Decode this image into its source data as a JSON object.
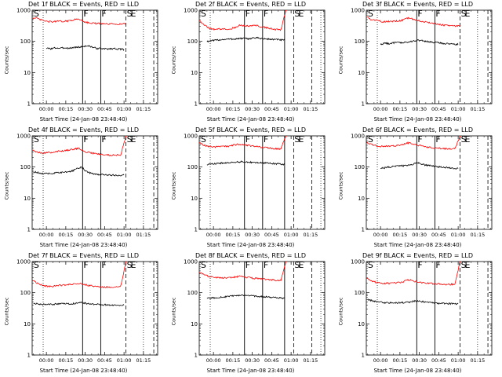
{
  "panel_title_template": "Det {det} BLACK = Events, RED = LLD",
  "x_axis_title": "Start Time (24-Jan-08 23:48:40)",
  "y_axis_title": "Counts/sec",
  "colors": {
    "events": "#000000",
    "lld": "#ff0000",
    "axes": "#000000"
  },
  "chart_data": [
    {
      "type": "line",
      "title": "Det 1f BLACK = Events, RED = LLD",
      "xlabel": "Start Time (24-Jan-08 23:48:40)",
      "ylabel": "Counts/sec",
      "y_scale": "log",
      "ylim": [
        1,
        1000
      ],
      "y_ticks": [
        "1",
        "10",
        "100",
        "1000"
      ],
      "x_tick_labels": [
        "00:00",
        "00:15",
        "00:30",
        "00:45",
        "01:00",
        "01:15"
      ],
      "x_minutes_start": -11,
      "x_minutes_end": 86,
      "markers": [
        {
          "label": "S",
          "t": -10.5
        },
        {
          "label": "F",
          "t": 28
        },
        {
          "label": "F",
          "t": 42
        },
        {
          "label": "S",
          "t": 61.5
        },
        {
          "label": "E",
          "t": 64.5
        }
      ],
      "solid_lines": [
        28,
        42
      ],
      "dashed_lines": [
        61.5,
        83
      ],
      "dotted_lines": [
        -2.5,
        75
      ],
      "series": [
        {
          "name": "Events",
          "color": "#000000",
          "t_start": 0,
          "t_end": 60,
          "values": [
            60,
            58,
            62,
            60,
            63,
            60,
            64,
            65,
            68,
            72,
            66,
            60,
            58,
            57,
            58,
            59,
            56,
            55
          ]
        },
        {
          "name": "LLD",
          "color": "#ff0000",
          "t_start": -11,
          "t_end": 61.5,
          "values": [
            560,
            540,
            470,
            430,
            430,
            440,
            440,
            450,
            500,
            520,
            430,
            390,
            380,
            370,
            360,
            360,
            360,
            360,
            370
          ]
        }
      ]
    },
    {
      "type": "line",
      "title": "Det 2f BLACK = Events, RED = LLD",
      "xlabel": "Start Time (24-Jan-08 23:48:40)",
      "ylabel": "Counts/sec",
      "y_scale": "log",
      "ylim": [
        1,
        1000
      ],
      "y_ticks": [
        "1",
        "10",
        "100",
        "1000"
      ],
      "x_tick_labels": [
        "00:00",
        "00:15",
        "00:30",
        "00:45",
        "01:00",
        "01:15"
      ],
      "x_minutes_start": -11,
      "x_minutes_end": 86,
      "markers": [
        {
          "label": "S",
          "t": -10.5
        },
        {
          "label": "F",
          "t": 24
        },
        {
          "label": "F",
          "t": 38
        },
        {
          "label": "S",
          "t": 62
        },
        {
          "label": "E",
          "t": 65
        }
      ],
      "solid_lines": [
        24,
        38,
        55
      ],
      "dashed_lines": [
        62,
        76
      ],
      "dotted_lines": [
        -2.5,
        83
      ],
      "series": [
        {
          "name": "Events",
          "color": "#000000",
          "t_start": -5,
          "t_end": 55,
          "values": [
            100,
            105,
            110,
            115,
            118,
            118,
            122,
            125,
            120,
            130,
            128,
            120,
            118,
            115,
            113,
            108
          ]
        },
        {
          "name": "LLD",
          "color": "#ff0000",
          "t_start": -11,
          "t_end": 56,
          "values": [
            480,
            340,
            260,
            240,
            250,
            250,
            250,
            280,
            330,
            310,
            320,
            330,
            300,
            280,
            260,
            240,
            230,
            1000
          ]
        }
      ]
    },
    {
      "type": "line",
      "title": "Det 3f BLACK = Events, RED = LLD",
      "xlabel": "Start Time (24-Jan-08 23:48:40)",
      "ylabel": "Counts/sec",
      "y_scale": "log",
      "ylim": [
        1,
        1000
      ],
      "y_ticks": [
        "1",
        "10",
        "100",
        "1000"
      ],
      "x_tick_labels": [
        "00:00",
        "00:15",
        "00:30",
        "00:45",
        "01:00",
        "01:15"
      ],
      "x_minutes_start": -11,
      "x_minutes_end": 86,
      "markers": [
        {
          "label": "S",
          "t": -10.5
        },
        {
          "label": "F",
          "t": 28
        },
        {
          "label": "F",
          "t": 42
        },
        {
          "label": "S",
          "t": 61.5
        },
        {
          "label": "E",
          "t": 64.5
        }
      ],
      "solid_lines": [
        28,
        42
      ],
      "dashed_lines": [
        61.5,
        83
      ],
      "dotted_lines": [
        -2.5,
        75
      ],
      "series": [
        {
          "name": "Events",
          "color": "#000000",
          "t_start": 0,
          "t_end": 60,
          "values": [
            80,
            88,
            85,
            90,
            92,
            90,
            95,
            100,
            110,
            105,
            100,
            95,
            92,
            90,
            85,
            84,
            82,
            80
          ]
        },
        {
          "name": "LLD",
          "color": "#ff0000",
          "t_start": -11,
          "t_end": 61.5,
          "values": [
            620,
            500,
            470,
            430,
            430,
            440,
            450,
            480,
            560,
            520,
            470,
            430,
            400,
            380,
            350,
            330,
            320,
            310,
            320
          ]
        }
      ]
    },
    {
      "type": "line",
      "title": "Det 4f BLACK = Events, RED = LLD",
      "xlabel": "Start Time (24-Jan-08 23:48:40)",
      "ylabel": "Counts/sec",
      "y_scale": "log",
      "ylim": [
        1,
        1000
      ],
      "y_ticks": [
        "1",
        "10",
        "100",
        "1000"
      ],
      "x_tick_labels": [
        "00:00",
        "00:15",
        "00:30",
        "00:45",
        "01:00",
        "01:15"
      ],
      "x_minutes_start": -11,
      "x_minutes_end": 86,
      "markers": [
        {
          "label": "S",
          "t": -10.5
        },
        {
          "label": "F",
          "t": 28
        },
        {
          "label": "F",
          "t": 42
        },
        {
          "label": "S",
          "t": 61.5
        },
        {
          "label": "E",
          "t": 64.5
        }
      ],
      "solid_lines": [
        28,
        42
      ],
      "dashed_lines": [
        61.5,
        83
      ],
      "dotted_lines": [
        -2.5,
        75
      ],
      "series": [
        {
          "name": "Events",
          "color": "#000000",
          "t_start": -10,
          "t_end": 60,
          "values": [
            70,
            65,
            60,
            62,
            64,
            66,
            68,
            72,
            85,
            100,
            70,
            62,
            58,
            57,
            56,
            55,
            54,
            55
          ]
        },
        {
          "name": "LLD",
          "color": "#ff0000",
          "t_start": -11,
          "t_end": 61.5,
          "values": [
            340,
            300,
            280,
            290,
            300,
            320,
            330,
            350,
            380,
            400,
            320,
            290,
            270,
            260,
            250,
            240,
            240,
            250,
            1000
          ]
        }
      ]
    },
    {
      "type": "line",
      "title": "Det 5f BLACK = Events, RED = LLD",
      "xlabel": "Start Time (24-Jan-08 23:48:40)",
      "ylabel": "Counts/sec",
      "y_scale": "log",
      "ylim": [
        1,
        1000
      ],
      "y_ticks": [
        "1",
        "10",
        "100",
        "1000"
      ],
      "x_tick_labels": [
        "00:00",
        "00:15",
        "00:30",
        "00:45",
        "01:00",
        "01:15"
      ],
      "x_minutes_start": -11,
      "x_minutes_end": 86,
      "markers": [
        {
          "label": "S",
          "t": -10.5
        },
        {
          "label": "F",
          "t": 24
        },
        {
          "label": "F",
          "t": 38
        },
        {
          "label": "S",
          "t": 62
        },
        {
          "label": "E",
          "t": 65
        }
      ],
      "solid_lines": [
        24,
        38,
        55
      ],
      "dashed_lines": [
        62,
        76
      ],
      "dotted_lines": [
        -2.5,
        83
      ],
      "series": [
        {
          "name": "Events",
          "color": "#000000",
          "t_start": -5,
          "t_end": 55,
          "values": [
            120,
            125,
            130,
            135,
            138,
            140,
            145,
            150,
            145,
            140,
            138,
            135,
            132,
            128,
            125,
            120
          ]
        },
        {
          "name": "LLD",
          "color": "#ff0000",
          "t_start": -11,
          "t_end": 56,
          "values": [
            600,
            500,
            450,
            440,
            450,
            460,
            470,
            520,
            540,
            500,
            480,
            460,
            440,
            420,
            400,
            390,
            380,
            1000
          ]
        }
      ]
    },
    {
      "type": "line",
      "title": "Det 6f BLACK = Events, RED = LLD",
      "xlabel": "Start Time (24-Jan-08 23:48:40)",
      "ylabel": "Counts/sec",
      "y_scale": "log",
      "ylim": [
        1,
        1000
      ],
      "y_ticks": [
        "1",
        "10",
        "100",
        "1000"
      ],
      "x_tick_labels": [
        "00:00",
        "00:15",
        "00:30",
        "00:45",
        "01:00",
        "01:15"
      ],
      "x_minutes_start": -11,
      "x_minutes_end": 86,
      "markers": [
        {
          "label": "S",
          "t": -10.5
        },
        {
          "label": "F",
          "t": 28
        },
        {
          "label": "F",
          "t": 42
        },
        {
          "label": "S",
          "t": 61.5
        },
        {
          "label": "E",
          "t": 64.5
        }
      ],
      "solid_lines": [
        28,
        42
      ],
      "dashed_lines": [
        61.5,
        83
      ],
      "dotted_lines": [
        -2.5,
        75
      ],
      "series": [
        {
          "name": "Events",
          "color": "#000000",
          "t_start": 0,
          "t_end": 60,
          "values": [
            90,
            95,
            100,
            105,
            108,
            110,
            112,
            120,
            140,
            125,
            115,
            110,
            105,
            100,
            98,
            95,
            92,
            90
          ]
        },
        {
          "name": "LLD",
          "color": "#ff0000",
          "t_start": -11,
          "t_end": 61.5,
          "values": [
            620,
            540,
            480,
            460,
            470,
            480,
            490,
            530,
            600,
            560,
            500,
            460,
            430,
            410,
            400,
            390,
            380,
            380,
            1000
          ]
        }
      ]
    },
    {
      "type": "line",
      "title": "Det 7f BLACK = Events, RED = LLD",
      "xlabel": "Start Time (24-Jan-08 23:48:40)",
      "ylabel": "Counts/sec",
      "y_scale": "log",
      "ylim": [
        1,
        1000
      ],
      "y_ticks": [
        "1",
        "10",
        "100",
        "1000"
      ],
      "x_tick_labels": [
        "00:00",
        "00:15",
        "00:30",
        "00:45",
        "01:00",
        "01:15"
      ],
      "x_minutes_start": -11,
      "x_minutes_end": 86,
      "markers": [
        {
          "label": "S",
          "t": -10.5
        },
        {
          "label": "F",
          "t": 28
        },
        {
          "label": "F",
          "t": 42
        },
        {
          "label": "S",
          "t": 61.5
        },
        {
          "label": "E",
          "t": 64.5
        }
      ],
      "solid_lines": [
        28,
        42
      ],
      "dashed_lines": [
        61.5,
        83
      ],
      "dotted_lines": [
        -2.5,
        75
      ],
      "series": [
        {
          "name": "Events",
          "color": "#000000",
          "t_start": -10,
          "t_end": 60,
          "values": [
            45,
            43,
            42,
            42,
            43,
            44,
            45,
            44,
            46,
            48,
            45,
            43,
            42,
            41,
            41,
            40,
            40,
            40
          ]
        },
        {
          "name": "LLD",
          "color": "#ff0000",
          "t_start": -11,
          "t_end": 61.5,
          "values": [
            260,
            200,
            170,
            160,
            160,
            170,
            175,
            180,
            190,
            200,
            180,
            170,
            160,
            155,
            150,
            150,
            150,
            160,
            1000
          ]
        }
      ]
    },
    {
      "type": "line",
      "title": "Det 8f BLACK = Events, RED = LLD",
      "xlabel": "Start Time (24-Jan-08 23:48:40)",
      "ylabel": "Counts/sec",
      "y_scale": "log",
      "ylim": [
        1,
        1000
      ],
      "y_ticks": [
        "1",
        "10",
        "100",
        "1000"
      ],
      "x_tick_labels": [
        "00:00",
        "00:15",
        "00:30",
        "00:45",
        "01:00",
        "01:15"
      ],
      "x_minutes_start": -11,
      "x_minutes_end": 86,
      "markers": [
        {
          "label": "S",
          "t": -10.5
        },
        {
          "label": "F",
          "t": 24
        },
        {
          "label": "F",
          "t": 38
        },
        {
          "label": "S",
          "t": 62
        },
        {
          "label": "E",
          "t": 65
        }
      ],
      "solid_lines": [
        24,
        38,
        55
      ],
      "dashed_lines": [
        62,
        76
      ],
      "dotted_lines": [
        -2.5,
        83
      ],
      "series": [
        {
          "name": "Events",
          "color": "#000000",
          "t_start": -5,
          "t_end": 55,
          "values": [
            65,
            68,
            70,
            72,
            75,
            78,
            80,
            82,
            80,
            78,
            76,
            74,
            72,
            70,
            68,
            66
          ]
        },
        {
          "name": "LLD",
          "color": "#ff0000",
          "t_start": -11,
          "t_end": 56,
          "values": [
            450,
            380,
            330,
            310,
            300,
            300,
            300,
            320,
            340,
            320,
            300,
            290,
            280,
            270,
            260,
            250,
            250,
            1000
          ]
        }
      ]
    },
    {
      "type": "line",
      "title": "Det 9f BLACK = Events, RED = LLD",
      "xlabel": "Start Time (24-Jan-08 23:48:40)",
      "ylabel": "Counts/sec",
      "y_scale": "log",
      "ylim": [
        1,
        1000
      ],
      "y_ticks": [
        "1",
        "10",
        "100",
        "1000"
      ],
      "x_tick_labels": [
        "00:00",
        "00:15",
        "00:30",
        "00:45",
        "01:00",
        "01:15"
      ],
      "x_minutes_start": -11,
      "x_minutes_end": 86,
      "markers": [
        {
          "label": "S",
          "t": -10.5
        },
        {
          "label": "F",
          "t": 28
        },
        {
          "label": "F",
          "t": 42
        },
        {
          "label": "S",
          "t": 61.5
        },
        {
          "label": "E",
          "t": 64.5
        }
      ],
      "solid_lines": [
        28,
        42
      ],
      "dashed_lines": [
        61.5,
        83
      ],
      "dotted_lines": [
        -2.5,
        75
      ],
      "series": [
        {
          "name": "Events",
          "color": "#000000",
          "t_start": -10,
          "t_end": 60,
          "values": [
            60,
            55,
            50,
            48,
            47,
            47,
            48,
            48,
            50,
            55,
            52,
            50,
            48,
            46,
            45,
            45,
            44,
            44
          ]
        },
        {
          "name": "LLD",
          "color": "#ff0000",
          "t_start": -11,
          "t_end": 61.5,
          "values": [
            300,
            240,
            210,
            200,
            200,
            200,
            210,
            220,
            260,
            240,
            215,
            205,
            200,
            195,
            190,
            185,
            185,
            190,
            1000
          ]
        }
      ]
    }
  ]
}
